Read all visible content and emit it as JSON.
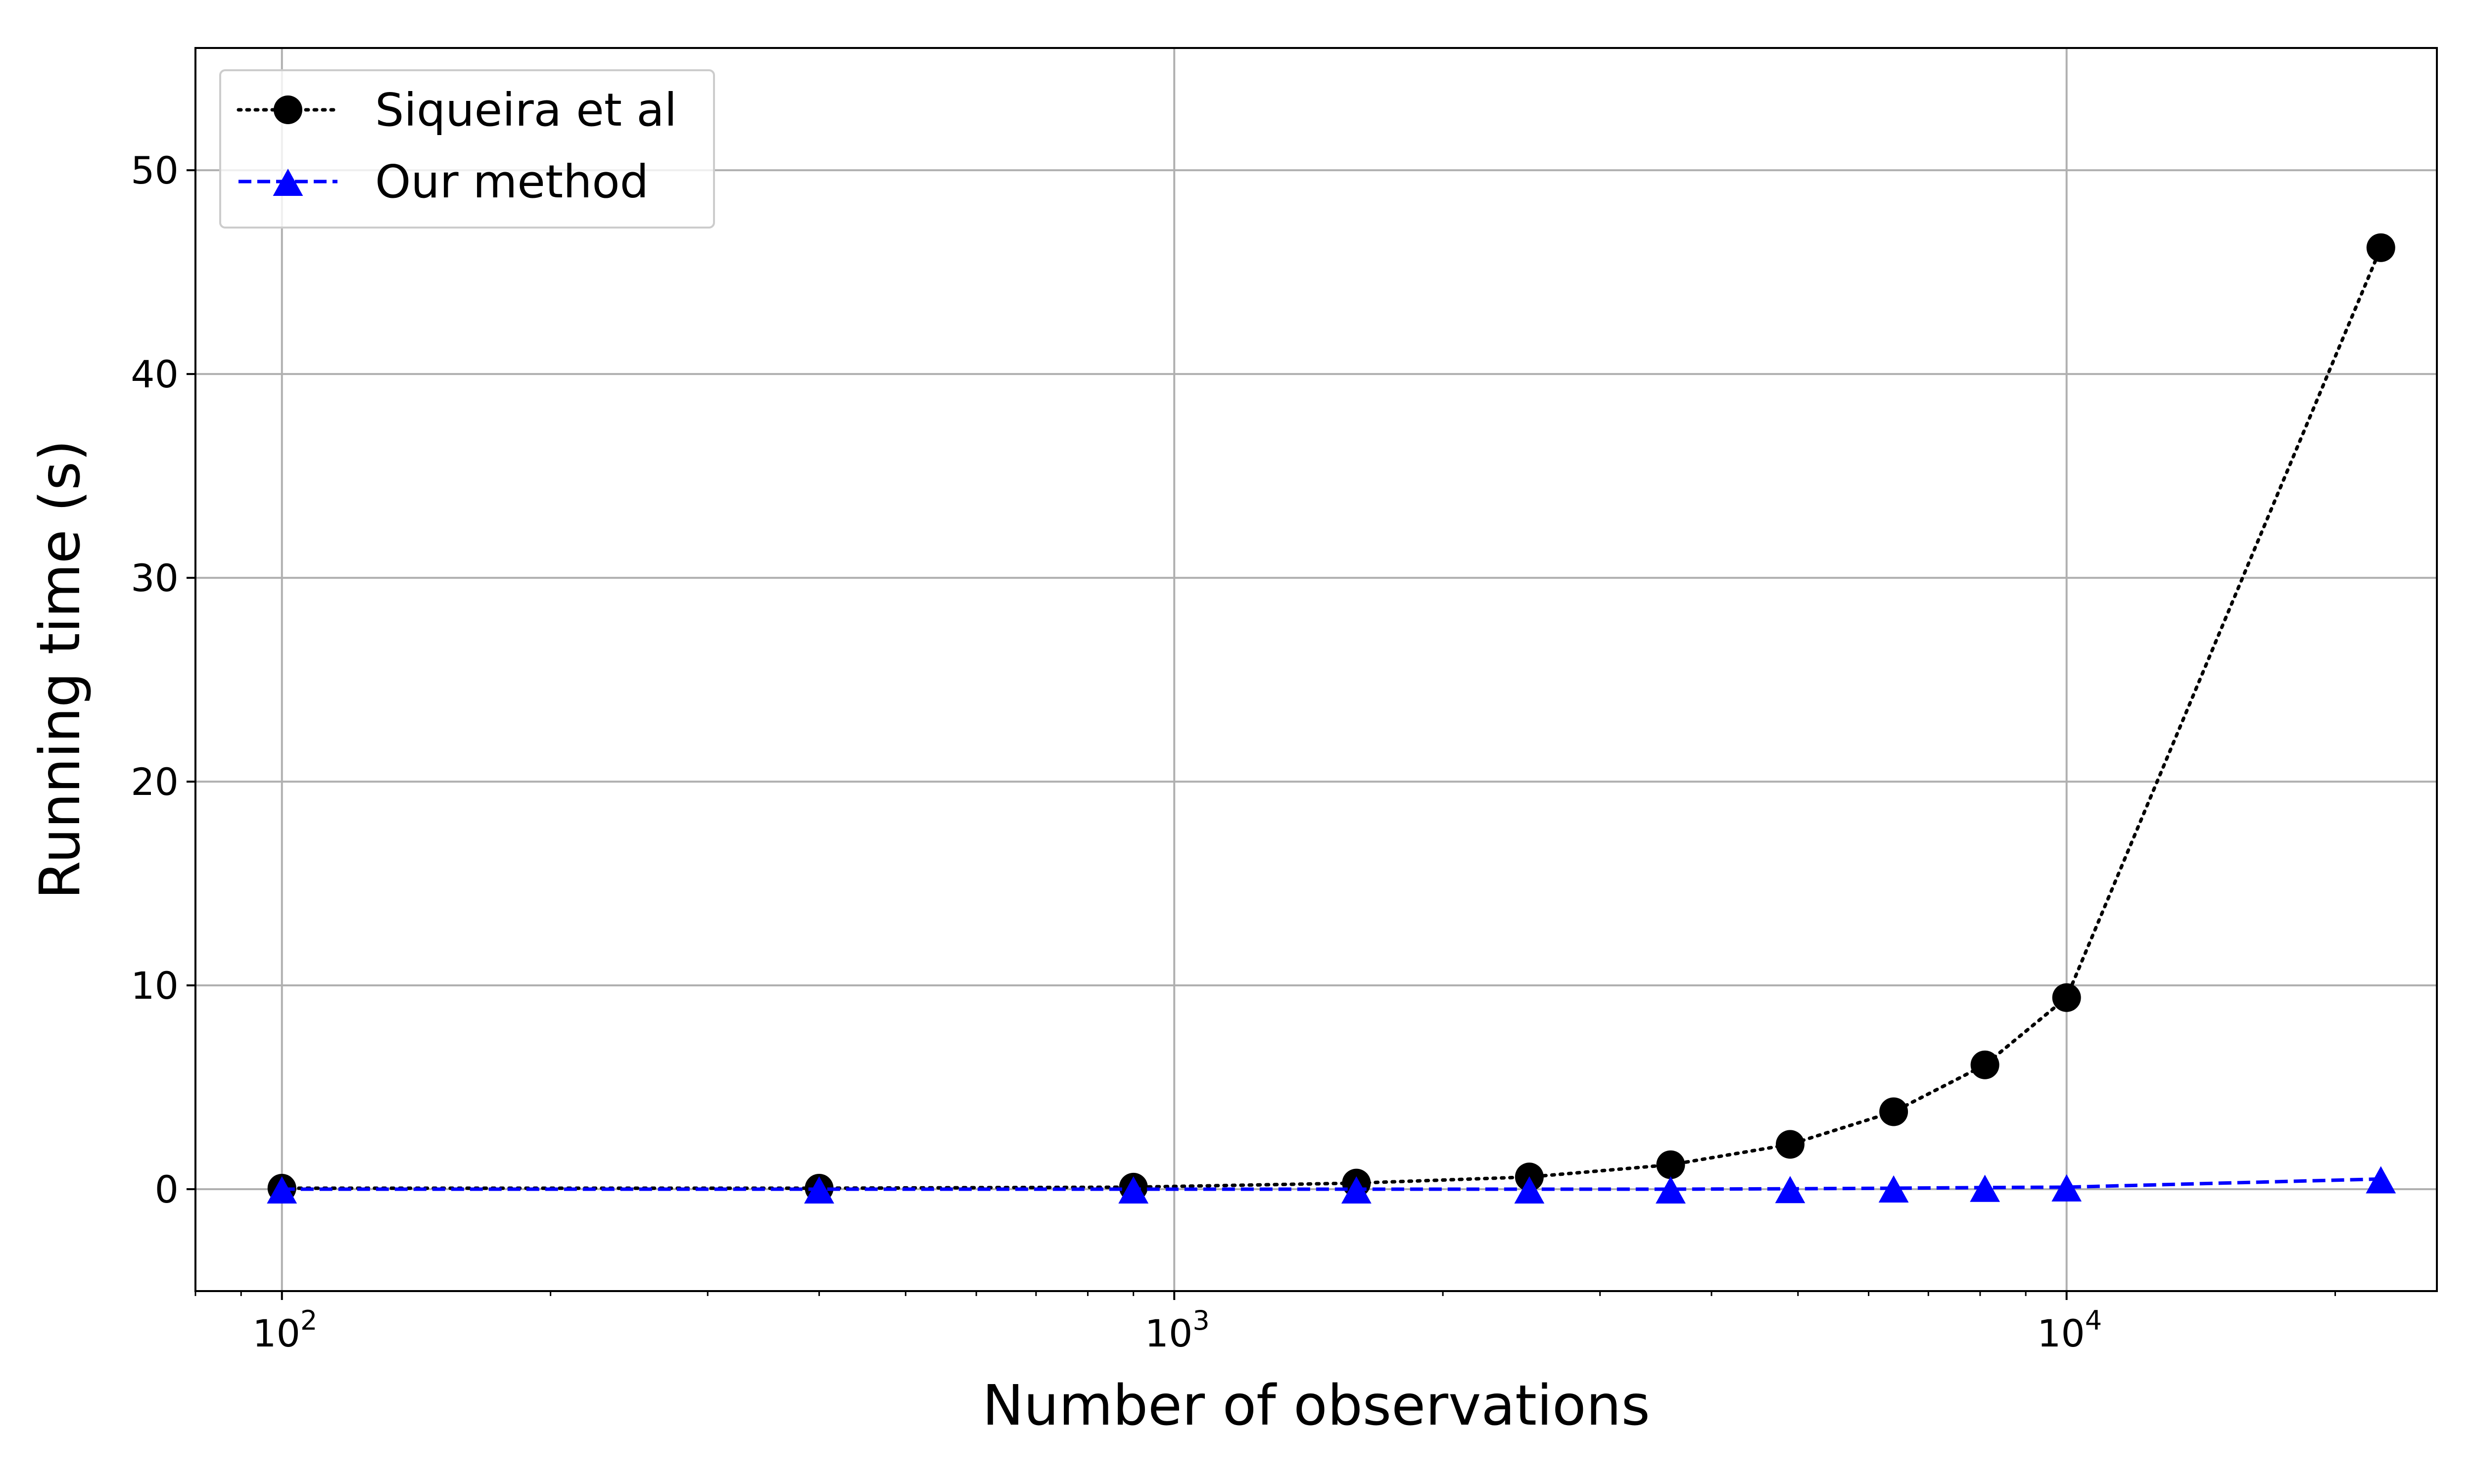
{
  "chart_data": {
    "type": "line",
    "xlabel": "Number of observations",
    "ylabel": "Running time (s)",
    "xscale": "log",
    "xlim": [
      80,
      26000
    ],
    "ylim": [
      -5,
      56
    ],
    "grid": true,
    "legend_position": "top-left",
    "x_ticks": [
      {
        "value": 100,
        "base": "10",
        "exp": "2"
      },
      {
        "value": 1000,
        "base": "10",
        "exp": "3"
      },
      {
        "value": 10000,
        "base": "10",
        "exp": "4"
      }
    ],
    "y_ticks": [
      {
        "value": 0,
        "label": "0"
      },
      {
        "value": 10,
        "label": "10"
      },
      {
        "value": 20,
        "label": "20"
      },
      {
        "value": 30,
        "label": "30"
      },
      {
        "value": 40,
        "label": "40"
      },
      {
        "value": 50,
        "label": "50"
      }
    ],
    "x": [
      100,
      400,
      900,
      1600,
      2500,
      3600,
      4900,
      6400,
      8100,
      10000,
      22500
    ],
    "series": [
      {
        "name": "Siqueira et al",
        "color": "#000000",
        "line_style": "dotted",
        "marker": "circle",
        "values": [
          0.05,
          0.05,
          0.1,
          0.3,
          0.6,
          1.2,
          2.2,
          3.8,
          6.1,
          9.4,
          46.2
        ]
      },
      {
        "name": "Our method",
        "color": "#0000ff",
        "line_style": "dashed",
        "marker": "triangle",
        "values": [
          0.0,
          0.0,
          0.0,
          0.0,
          0.0,
          0.0,
          0.02,
          0.05,
          0.08,
          0.1,
          0.5
        ]
      }
    ]
  }
}
